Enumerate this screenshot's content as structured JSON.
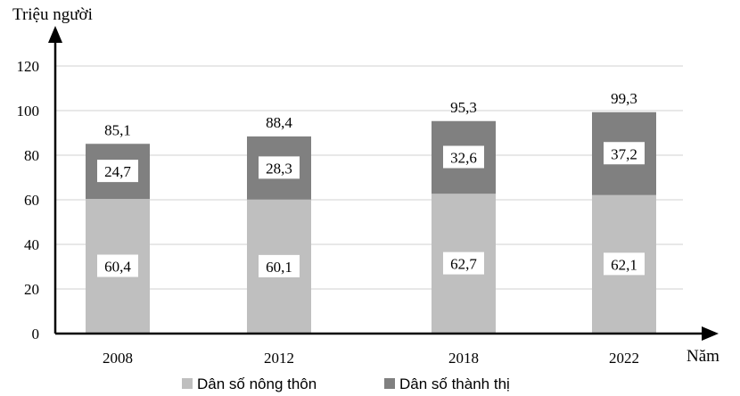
{
  "chart_data": {
    "type": "bar",
    "stacked": true,
    "ylabel": "Triệu người",
    "xlabel": "Năm",
    "ylim": [
      0,
      120
    ],
    "yticks": [
      "0",
      "20",
      "40",
      "60",
      "80",
      "100",
      "120"
    ],
    "grid": true,
    "legend_position": "bottom",
    "categories": [
      "2008",
      "2012",
      "2018",
      "2022"
    ],
    "series": [
      {
        "name": "Dân số nông thôn",
        "values": [
          60.4,
          60.1,
          62.7,
          62.1
        ],
        "labels": [
          "60,4",
          "60,1",
          "62,7",
          "62,1"
        ],
        "color": "#bfbfbf"
      },
      {
        "name": "Dân số thành thị",
        "values": [
          24.7,
          28.3,
          32.6,
          37.2
        ],
        "labels": [
          "24,7",
          "28,3",
          "32,6",
          "37,2"
        ],
        "color": "#808080"
      }
    ],
    "totals": [
      85.1,
      88.4,
      95.3,
      99.3
    ],
    "total_labels": [
      "85,1",
      "88,4",
      "95,3",
      "99,3"
    ]
  }
}
